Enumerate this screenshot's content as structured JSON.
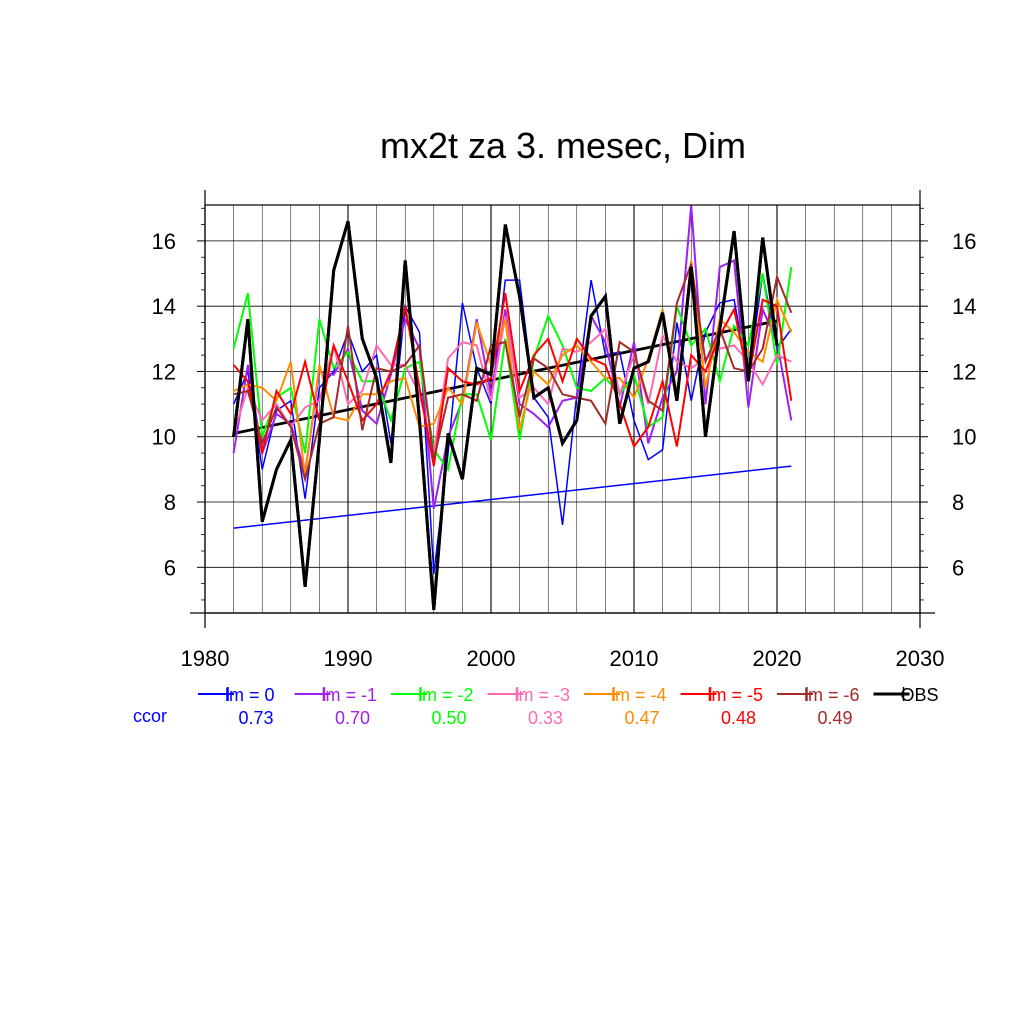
{
  "chart_data": {
    "type": "line",
    "title": "mx2t za 3. mesec, Dim",
    "xlabel": "",
    "ylabel": "",
    "xlim": [
      1980,
      2030
    ],
    "ylim": [
      4.6,
      17.1
    ],
    "x_ticks": [
      1980,
      1990,
      2000,
      2010,
      2020,
      2030
    ],
    "y_ticks": [
      6,
      8,
      10,
      12,
      14,
      16
    ],
    "grid": true,
    "legend_position": "bottom",
    "ccor_label": "ccor",
    "x": [
      1982,
      1983,
      1984,
      1985,
      1986,
      1987,
      1988,
      1989,
      1990,
      1991,
      1992,
      1993,
      1994,
      1995,
      1996,
      1997,
      1998,
      1999,
      2000,
      2001,
      2002,
      2003,
      2004,
      2005,
      2006,
      2007,
      2008,
      2009,
      2010,
      2011,
      2012,
      2013,
      2014,
      2015,
      2016,
      2017,
      2018,
      2019,
      2020,
      2021
    ],
    "series": [
      {
        "name": "lm = 0",
        "color": "#0000ff",
        "ccor": "0.73",
        "values": [
          11.0,
          12.0,
          9.0,
          10.8,
          11.1,
          8.1,
          11.5,
          12.0,
          13.2,
          12.0,
          12.5,
          9.8,
          14.0,
          13.2,
          5.8,
          9.5,
          14.1,
          12.1,
          11.0,
          14.8,
          14.8,
          11.2,
          10.6,
          7.3,
          11.3,
          14.8,
          12.5,
          12.6,
          10.5,
          9.3,
          9.6,
          13.5,
          11.1,
          13.2,
          14.1,
          14.2,
          11.8,
          15.0,
          12.7,
          13.3
        ]
      },
      {
        "name": "lm = -1",
        "color": "#a020f0",
        "ccor": "0.70",
        "values": [
          9.5,
          12.2,
          9.5,
          10.7,
          10.4,
          8.9,
          12.0,
          11.9,
          12.7,
          10.8,
          10.4,
          11.9,
          13.6,
          12.7,
          7.8,
          10.0,
          11.1,
          13.6,
          11.3,
          13.9,
          11.0,
          10.7,
          10.3,
          11.1,
          11.2,
          13.7,
          12.9,
          10.9,
          12.9,
          9.8,
          11.2,
          12.0,
          17.1,
          11.0,
          15.2,
          15.4,
          10.9,
          13.9,
          12.9,
          10.5
        ]
      },
      {
        "name": "lm = -2",
        "color": "#00ff00",
        "ccor": "0.50",
        "values": [
          12.7,
          14.4,
          10.0,
          11.2,
          11.5,
          9.5,
          13.6,
          12.1,
          12.6,
          11.7,
          11.7,
          10.5,
          12.1,
          12.3,
          9.6,
          9.0,
          11.3,
          11.3,
          9.9,
          13.0,
          9.9,
          12.4,
          13.7,
          12.8,
          11.5,
          11.4,
          11.8,
          11.3,
          11.9,
          10.3,
          10.6,
          14.0,
          12.8,
          13.3,
          11.7,
          13.4,
          12.8,
          15.0,
          12.2,
          15.2
        ]
      },
      {
        "name": "lm = -3",
        "color": "#ff69b4",
        "ccor": "0.33",
        "values": [
          10.1,
          11.5,
          10.5,
          11.0,
          10.3,
          10.9,
          11.1,
          12.8,
          11.0,
          11.4,
          12.8,
          12.2,
          12.2,
          11.3,
          9.5,
          12.4,
          12.9,
          12.8,
          11.1,
          13.7,
          11.2,
          11.5,
          11.0,
          12.7,
          12.6,
          12.9,
          13.3,
          11.3,
          12.5,
          11.0,
          13.1,
          12.3,
          12.1,
          12.4,
          12.7,
          12.8,
          12.3,
          11.6,
          12.5,
          12.3
        ]
      },
      {
        "name": "lm = -4",
        "color": "#ff8c00",
        "ccor": "0.47",
        "values": [
          11.4,
          11.6,
          11.5,
          11.1,
          12.3,
          8.8,
          12.2,
          10.6,
          10.5,
          11.3,
          11.3,
          11.7,
          11.8,
          10.3,
          10.4,
          11.5,
          11.0,
          13.5,
          12.2,
          13.6,
          10.2,
          12.0,
          11.6,
          12.5,
          12.8,
          12.3,
          11.8,
          11.8,
          11.2,
          12.4,
          13.9,
          11.3,
          15.4,
          11.5,
          13.6,
          13.2,
          12.6,
          12.3,
          14.2,
          13.2
        ]
      },
      {
        "name": "lm = -5",
        "color": "#ff0000",
        "ccor": "0.48",
        "values": [
          12.2,
          11.7,
          9.5,
          11.4,
          10.7,
          12.3,
          10.5,
          12.8,
          11.7,
          10.5,
          11.0,
          12.0,
          14.0,
          11.5,
          9.1,
          12.1,
          11.7,
          11.6,
          11.8,
          14.4,
          11.4,
          12.5,
          13.0,
          11.7,
          13.0,
          12.4,
          12.2,
          11.0,
          9.7,
          10.3,
          11.7,
          9.7,
          12.5,
          12.0,
          13.1,
          13.9,
          11.8,
          14.2,
          14.0,
          11.1
        ]
      },
      {
        "name": "lm = -6",
        "color": "#a52a2a",
        "ccor": "0.49",
        "values": [
          11.3,
          11.4,
          9.8,
          10.9,
          10.3,
          8.7,
          10.4,
          10.6,
          13.4,
          10.2,
          12.1,
          12.0,
          12.2,
          12.8,
          9.3,
          11.2,
          11.3,
          11.1,
          12.8,
          12.9,
          10.6,
          12.4,
          12.1,
          11.3,
          11.2,
          11.1,
          10.4,
          12.9,
          12.6,
          11.1,
          10.8,
          14.1,
          15.3,
          12.3,
          13.3,
          12.1,
          12.0,
          12.7,
          14.9,
          13.8
        ]
      },
      {
        "name": "OBS",
        "color": "#000000",
        "ccor": "",
        "values": [
          10.0,
          13.6,
          7.4,
          9.0,
          9.9,
          5.4,
          9.9,
          15.1,
          16.6,
          13.0,
          11.8,
          9.2,
          15.4,
          10.5,
          4.7,
          10.1,
          8.7,
          12.1,
          11.9,
          16.5,
          14.3,
          11.2,
          11.5,
          9.8,
          10.5,
          13.7,
          14.3,
          10.4,
          12.1,
          12.3,
          13.8,
          11.1,
          15.2,
          10.0,
          13.3,
          16.3,
          11.7,
          16.1,
          12.8,
          null
        ]
      }
    ],
    "trend_lines": [
      {
        "series": "lm = 0",
        "color": "#0000ff",
        "x": [
          1982,
          2021
        ],
        "y": [
          7.2,
          9.1
        ]
      },
      {
        "series": "OBS",
        "color": "#000000",
        "x": [
          1982,
          2020
        ],
        "y": [
          10.1,
          13.55
        ]
      }
    ]
  }
}
